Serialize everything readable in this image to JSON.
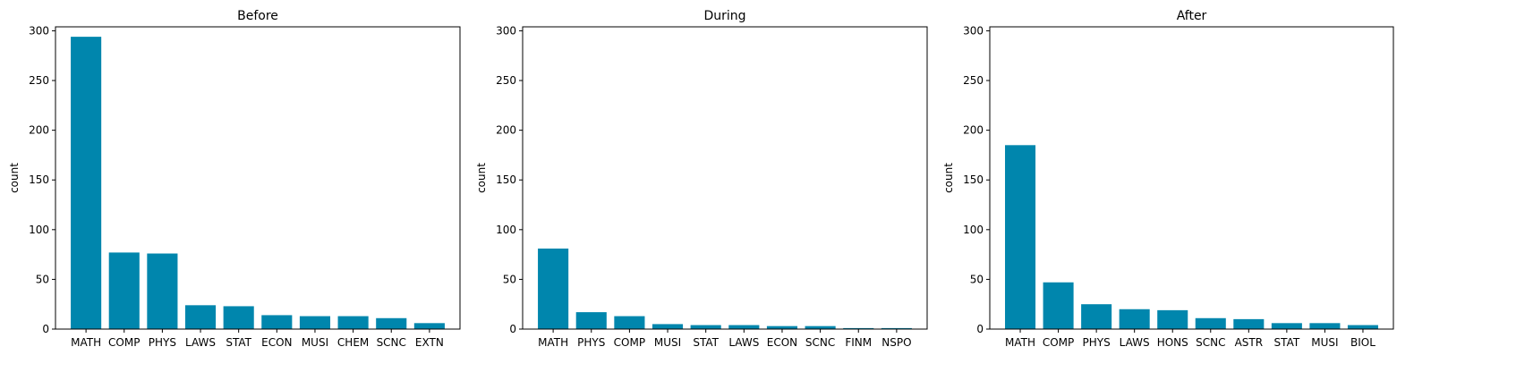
{
  "bar_color": "#0086ad",
  "chart_data": [
    {
      "type": "bar",
      "title": "Before",
      "xlabel": "",
      "ylabel": "count",
      "ylim": [
        0,
        304
      ],
      "yticks": [
        0,
        50,
        100,
        150,
        200,
        250,
        300
      ],
      "categories": [
        "MATH",
        "COMP",
        "PHYS",
        "LAWS",
        "STAT",
        "ECON",
        "MUSI",
        "CHEM",
        "SCNC",
        "EXTN"
      ],
      "values": [
        294,
        77,
        76,
        24,
        23,
        14,
        13,
        13,
        11,
        6
      ]
    },
    {
      "type": "bar",
      "title": "During",
      "xlabel": "",
      "ylabel": "count",
      "ylim": [
        0,
        304
      ],
      "yticks": [
        0,
        50,
        100,
        150,
        200,
        250,
        300
      ],
      "categories": [
        "MATH",
        "PHYS",
        "COMP",
        "MUSI",
        "STAT",
        "LAWS",
        "ECON",
        "SCNC",
        "FINM",
        "NSPO"
      ],
      "values": [
        81,
        17,
        13,
        5,
        4,
        4,
        3,
        3,
        1,
        1
      ]
    },
    {
      "type": "bar",
      "title": "After",
      "xlabel": "",
      "ylabel": "count",
      "ylim": [
        0,
        304
      ],
      "yticks": [
        0,
        50,
        100,
        150,
        200,
        250,
        300
      ],
      "categories": [
        "MATH",
        "COMP",
        "PHYS",
        "LAWS",
        "HONS",
        "SCNC",
        "ASTR",
        "STAT",
        "MUSI",
        "BIOL"
      ],
      "values": [
        185,
        47,
        25,
        20,
        19,
        11,
        10,
        6,
        6,
        4
      ]
    }
  ]
}
